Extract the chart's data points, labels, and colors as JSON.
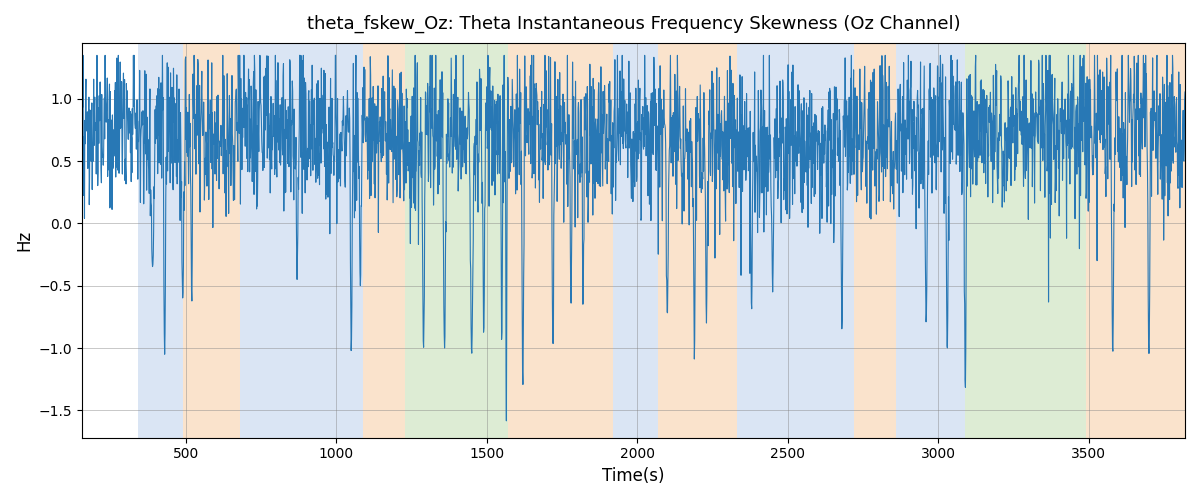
{
  "title": "theta_fskew_Oz: Theta Instantaneous Frequency Skewness (Oz Channel)",
  "xlabel": "Time(s)",
  "ylabel": "Hz",
  "xlim": [
    155,
    3820
  ],
  "ylim": [
    -1.72,
    1.45
  ],
  "yticks": [
    -1.5,
    -1.0,
    -0.5,
    0.0,
    0.5,
    1.0
  ],
  "xticks": [
    500,
    1000,
    1500,
    2000,
    2500,
    3000,
    3500
  ],
  "line_color": "#2878b5",
  "background_color": "#ffffff",
  "regions": [
    {
      "start": 340,
      "end": 490,
      "color": "#aec6e8",
      "alpha": 0.45
    },
    {
      "start": 490,
      "end": 680,
      "color": "#f4c18e",
      "alpha": 0.45
    },
    {
      "start": 680,
      "end": 1090,
      "color": "#aec6e8",
      "alpha": 0.45
    },
    {
      "start": 1090,
      "end": 1230,
      "color": "#f4c18e",
      "alpha": 0.45
    },
    {
      "start": 1230,
      "end": 1570,
      "color": "#b5d5a0",
      "alpha": 0.45
    },
    {
      "start": 1570,
      "end": 1920,
      "color": "#f4c18e",
      "alpha": 0.45
    },
    {
      "start": 1920,
      "end": 2070,
      "color": "#aec6e8",
      "alpha": 0.45
    },
    {
      "start": 2070,
      "end": 2330,
      "color": "#f4c18e",
      "alpha": 0.45
    },
    {
      "start": 2330,
      "end": 2490,
      "color": "#aec6e8",
      "alpha": 0.45
    },
    {
      "start": 2490,
      "end": 2720,
      "color": "#aec6e8",
      "alpha": 0.45
    },
    {
      "start": 2720,
      "end": 2860,
      "color": "#f4c18e",
      "alpha": 0.45
    },
    {
      "start": 2860,
      "end": 3090,
      "color": "#aec6e8",
      "alpha": 0.45
    },
    {
      "start": 3090,
      "end": 3490,
      "color": "#b5d5a0",
      "alpha": 0.45
    },
    {
      "start": 3490,
      "end": 3820,
      "color": "#f4c18e",
      "alpha": 0.45
    }
  ]
}
